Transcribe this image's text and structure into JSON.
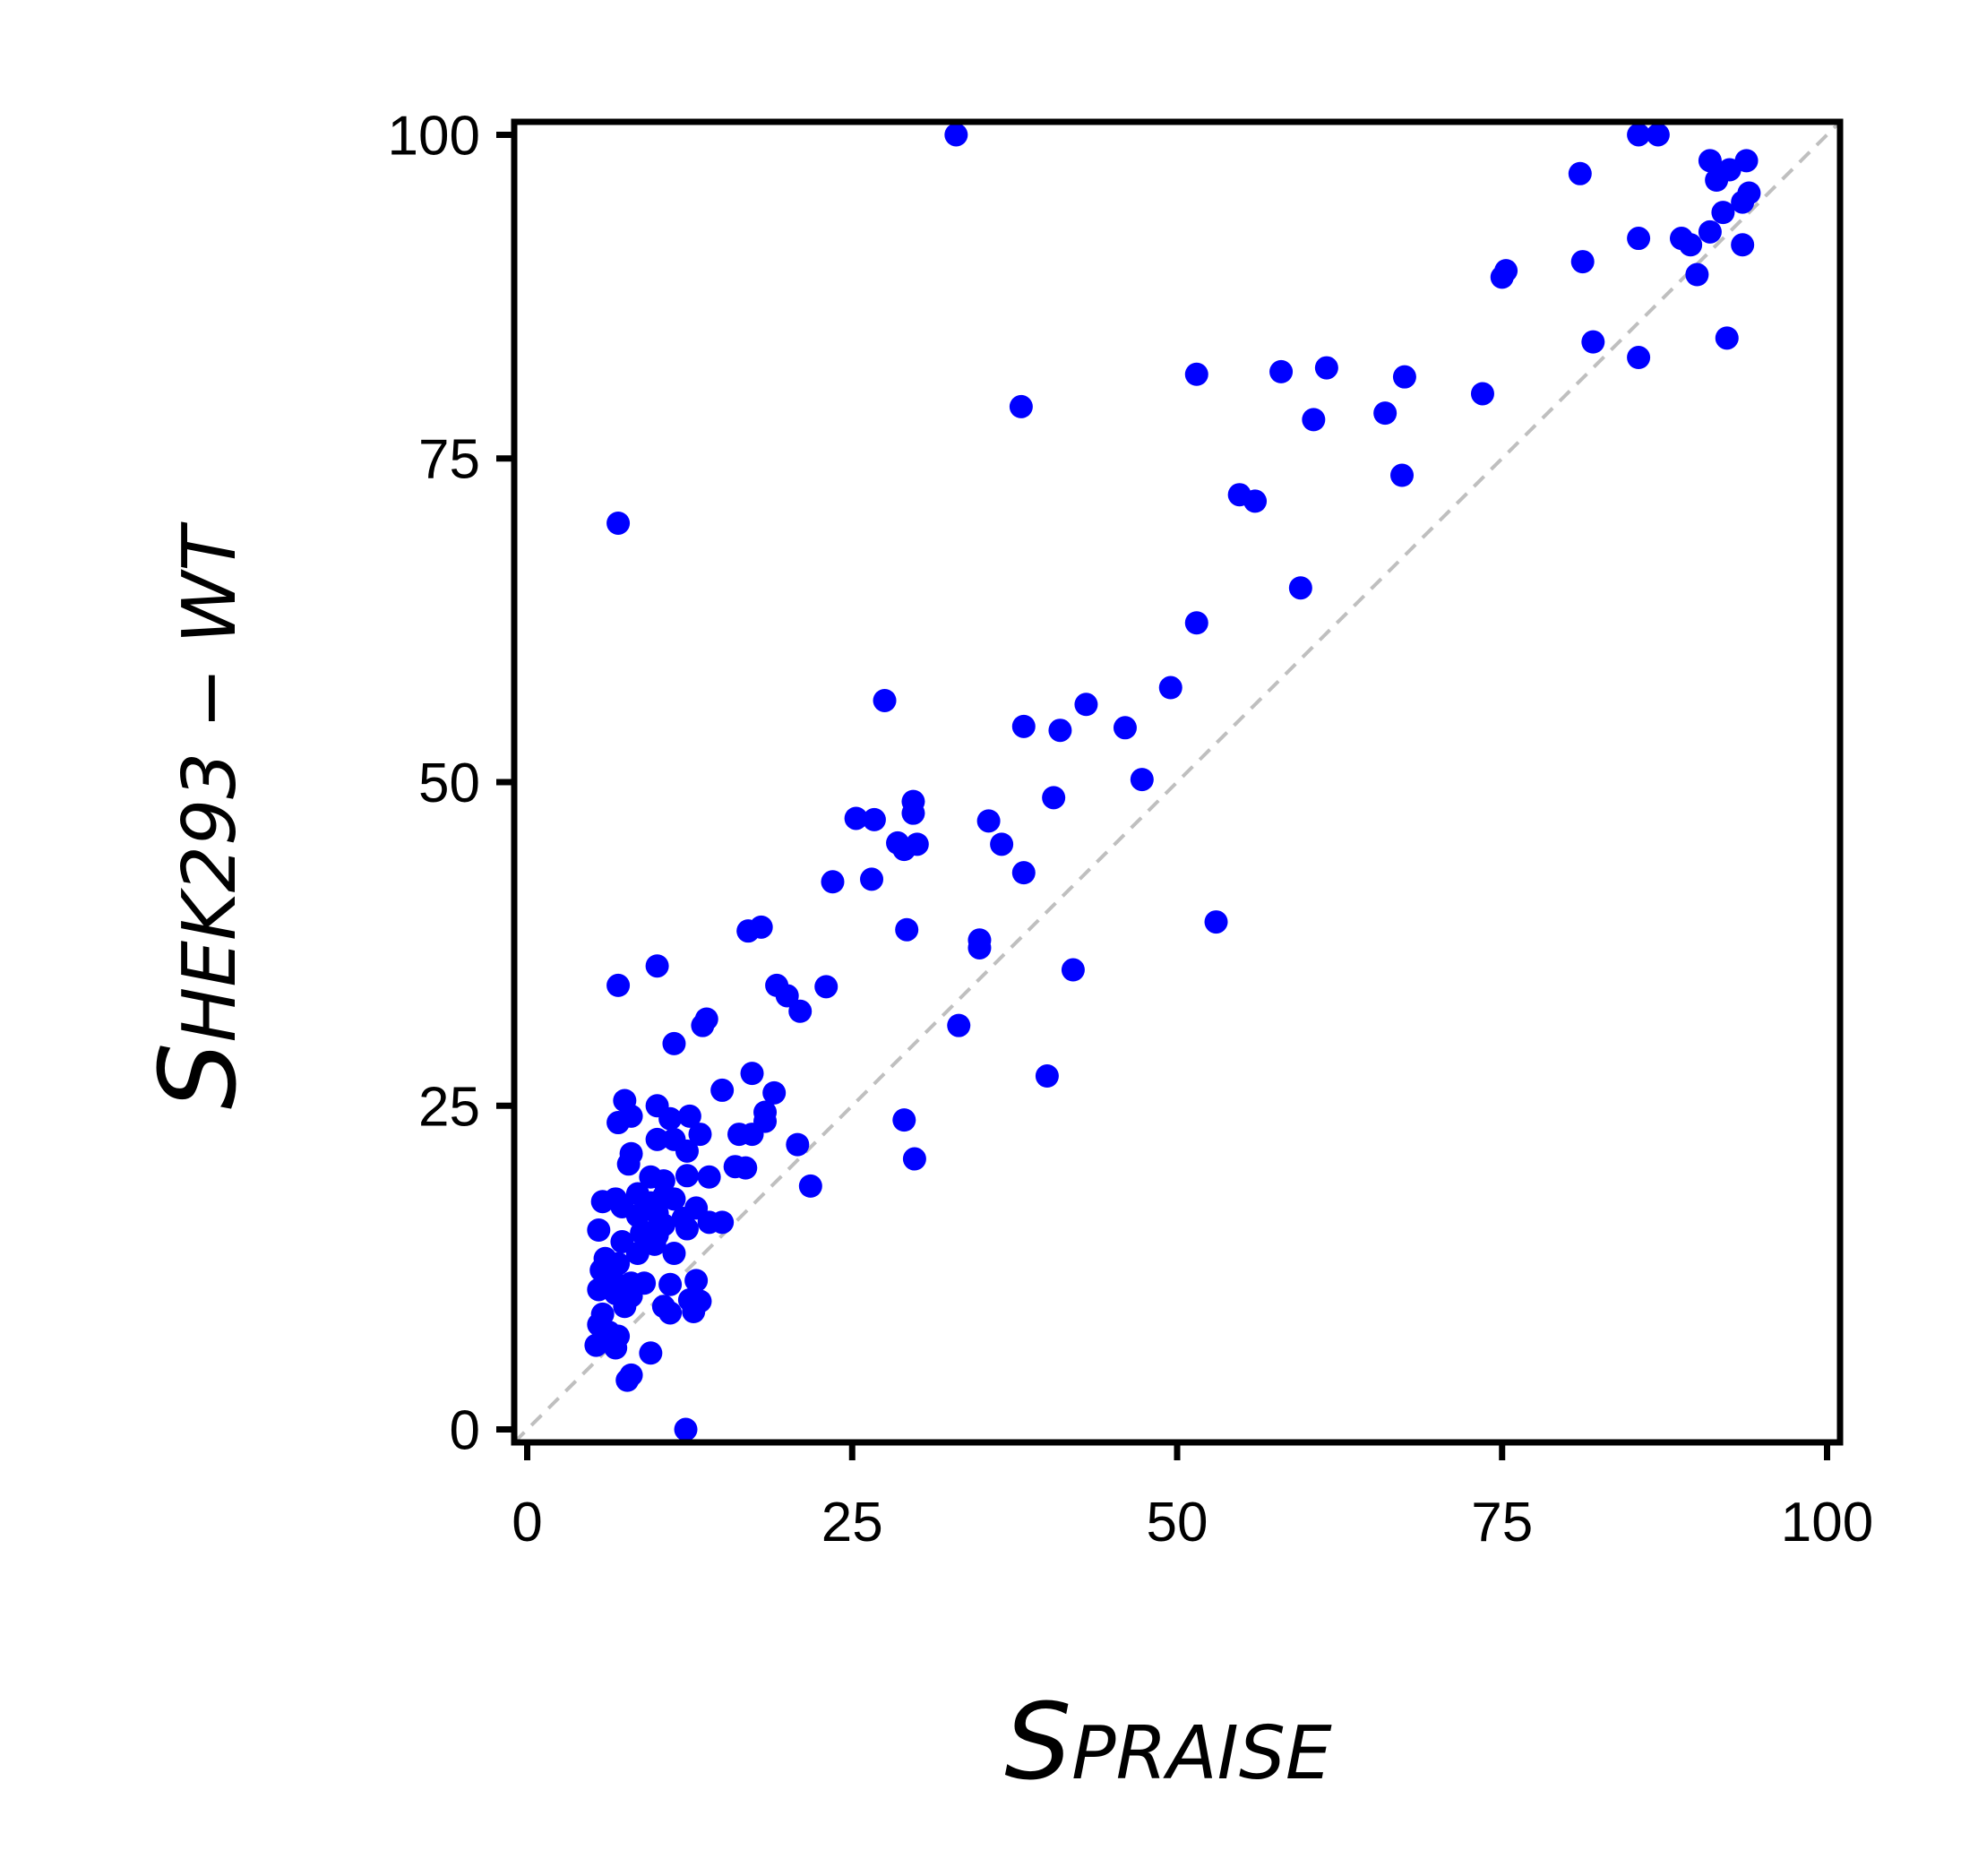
{
  "chart_data": {
    "type": "scatter",
    "title": "",
    "xlabel": {
      "main": "S",
      "sub": "PRAISE"
    },
    "ylabel": {
      "main": "S",
      "sub": "HEK293 − WT"
    },
    "xlim": [
      -1,
      101
    ],
    "ylim": [
      -1,
      101
    ],
    "x_ticks": [
      "0",
      "25",
      "50",
      "75",
      "100"
    ],
    "y_ticks": [
      "0",
      "25",
      "50",
      "75",
      "100"
    ],
    "grid": false,
    "legend": "none",
    "reference_line": {
      "type": "identity",
      "color": "#bfbfbf",
      "style": "dashed"
    },
    "colors": {
      "points": "#0000ff",
      "axes": "#000000"
    },
    "series": [
      {
        "points": [
          [
            33,
            100
          ],
          [
            7,
            70
          ],
          [
            38,
            79
          ],
          [
            51.5,
            81.5
          ],
          [
            58,
            81.7
          ],
          [
            61.5,
            82
          ],
          [
            67.5,
            81.3
          ],
          [
            60.5,
            78
          ],
          [
            66,
            78.5
          ],
          [
            73.5,
            80
          ],
          [
            67.3,
            73.7
          ],
          [
            54.8,
            72.2
          ],
          [
            56,
            71.7
          ],
          [
            59.5,
            65
          ],
          [
            51.5,
            62.3
          ],
          [
            81,
            97
          ],
          [
            81.2,
            90.2
          ],
          [
            85.5,
            100
          ],
          [
            87,
            100
          ],
          [
            85.5,
            92
          ],
          [
            88.8,
            92
          ],
          [
            89.5,
            91.5
          ],
          [
            75,
            89
          ],
          [
            75.3,
            89.5
          ],
          [
            90,
            89.2
          ],
          [
            91,
            98
          ],
          [
            91.5,
            96.5
          ],
          [
            92.5,
            97.3
          ],
          [
            93.8,
            98
          ],
          [
            91,
            92.5
          ],
          [
            92,
            94
          ],
          [
            93.5,
            94.8
          ],
          [
            94,
            95.5
          ],
          [
            93.5,
            91.5
          ],
          [
            82,
            84
          ],
          [
            85.5,
            82.8
          ],
          [
            92.3,
            84.3
          ],
          [
            27.5,
            56.3
          ],
          [
            49.5,
            57.3
          ],
          [
            43,
            56
          ],
          [
            38.2,
            54.3
          ],
          [
            41,
            54
          ],
          [
            46,
            54.2
          ],
          [
            47.3,
            50.2
          ],
          [
            40.5,
            48.8
          ],
          [
            29.7,
            48.5
          ],
          [
            29.7,
            47.6
          ],
          [
            25.3,
            47.2
          ],
          [
            26.7,
            47.1
          ],
          [
            35.5,
            47
          ],
          [
            28.5,
            45.3
          ],
          [
            29,
            44.8
          ],
          [
            30,
            45.2
          ],
          [
            36.5,
            45.2
          ],
          [
            23.5,
            42.3
          ],
          [
            26.5,
            42.5
          ],
          [
            38.2,
            43
          ],
          [
            53,
            39.2
          ],
          [
            17,
            38.5
          ],
          [
            18,
            38.8
          ],
          [
            29.2,
            38.6
          ],
          [
            34.8,
            37.8
          ],
          [
            34.8,
            37.2
          ],
          [
            42,
            35.5
          ],
          [
            10,
            35.8
          ],
          [
            7,
            34.3
          ],
          [
            19.2,
            34.3
          ],
          [
            20,
            33.5
          ],
          [
            23,
            34.2
          ],
          [
            21,
            32.3
          ],
          [
            13.8,
            31.7
          ],
          [
            13.5,
            31.2
          ],
          [
            33.2,
            31.2
          ],
          [
            11.3,
            29.8
          ],
          [
            17.3,
            27.5
          ],
          [
            40,
            27.3
          ],
          [
            15,
            26.2
          ],
          [
            19,
            26
          ],
          [
            7.5,
            25.4
          ],
          [
            10,
            25
          ],
          [
            18.3,
            24.5
          ],
          [
            12.5,
            24.2
          ],
          [
            7,
            23.7
          ],
          [
            8,
            24.2
          ],
          [
            11,
            24
          ],
          [
            18.3,
            23.8
          ],
          [
            29,
            23.9
          ],
          [
            16.3,
            22.8
          ],
          [
            17.3,
            22.8
          ],
          [
            13.3,
            22.8
          ],
          [
            10,
            22.4
          ],
          [
            11.3,
            22.4
          ],
          [
            20.8,
            22
          ],
          [
            12.3,
            21.5
          ],
          [
            8,
            21.3
          ],
          [
            29.8,
            20.9
          ],
          [
            7.8,
            20.5
          ],
          [
            16,
            20.3
          ],
          [
            16.8,
            20.2
          ],
          [
            14,
            19.5
          ],
          [
            9.5,
            19.5
          ],
          [
            10.5,
            19.2
          ],
          [
            12.3,
            19.6
          ],
          [
            21.8,
            18.8
          ],
          [
            8.5,
            18.2
          ],
          [
            10.5,
            18
          ],
          [
            11.3,
            17.8
          ],
          [
            6.8,
            17.8
          ],
          [
            9.5,
            17.5
          ],
          [
            5.8,
            17.6
          ],
          [
            7.3,
            17.2
          ],
          [
            13,
            17.1
          ],
          [
            10,
            16.7
          ],
          [
            8.5,
            16.5
          ],
          [
            12,
            16.3
          ],
          [
            14,
            16
          ],
          [
            15,
            16
          ],
          [
            10.5,
            15.8
          ],
          [
            9.5,
            15.2
          ],
          [
            12.3,
            15.5
          ],
          [
            5.5,
            15.4
          ],
          [
            8.8,
            15.2
          ],
          [
            10,
            15
          ],
          [
            7.3,
            14.5
          ],
          [
            9.8,
            14.3
          ],
          [
            11.3,
            13.6
          ],
          [
            8.5,
            13.6
          ],
          [
            6,
            13.2
          ],
          [
            7,
            12.8
          ],
          [
            5.7,
            12.3
          ],
          [
            6.5,
            11.8
          ],
          [
            13,
            11.5
          ],
          [
            8,
            11.3
          ],
          [
            9,
            11.3
          ],
          [
            11,
            11.2
          ],
          [
            5.5,
            10.8
          ],
          [
            6.8,
            10.5
          ],
          [
            7.3,
            10.8
          ],
          [
            8,
            10.3
          ],
          [
            12.5,
            10
          ],
          [
            13.3,
            9.9
          ],
          [
            10.5,
            9.5
          ],
          [
            11,
            9
          ],
          [
            12.8,
            9.1
          ],
          [
            7.5,
            9.5
          ],
          [
            5.8,
            8.9
          ],
          [
            5.5,
            8.1
          ],
          [
            6.3,
            7.5
          ],
          [
            7,
            7.2
          ],
          [
            5.3,
            6.5
          ],
          [
            6.8,
            6.3
          ],
          [
            9.5,
            5.9
          ],
          [
            8,
            4.2
          ],
          [
            7.7,
            3.8
          ],
          [
            12.2,
            0
          ]
        ]
      }
    ]
  }
}
